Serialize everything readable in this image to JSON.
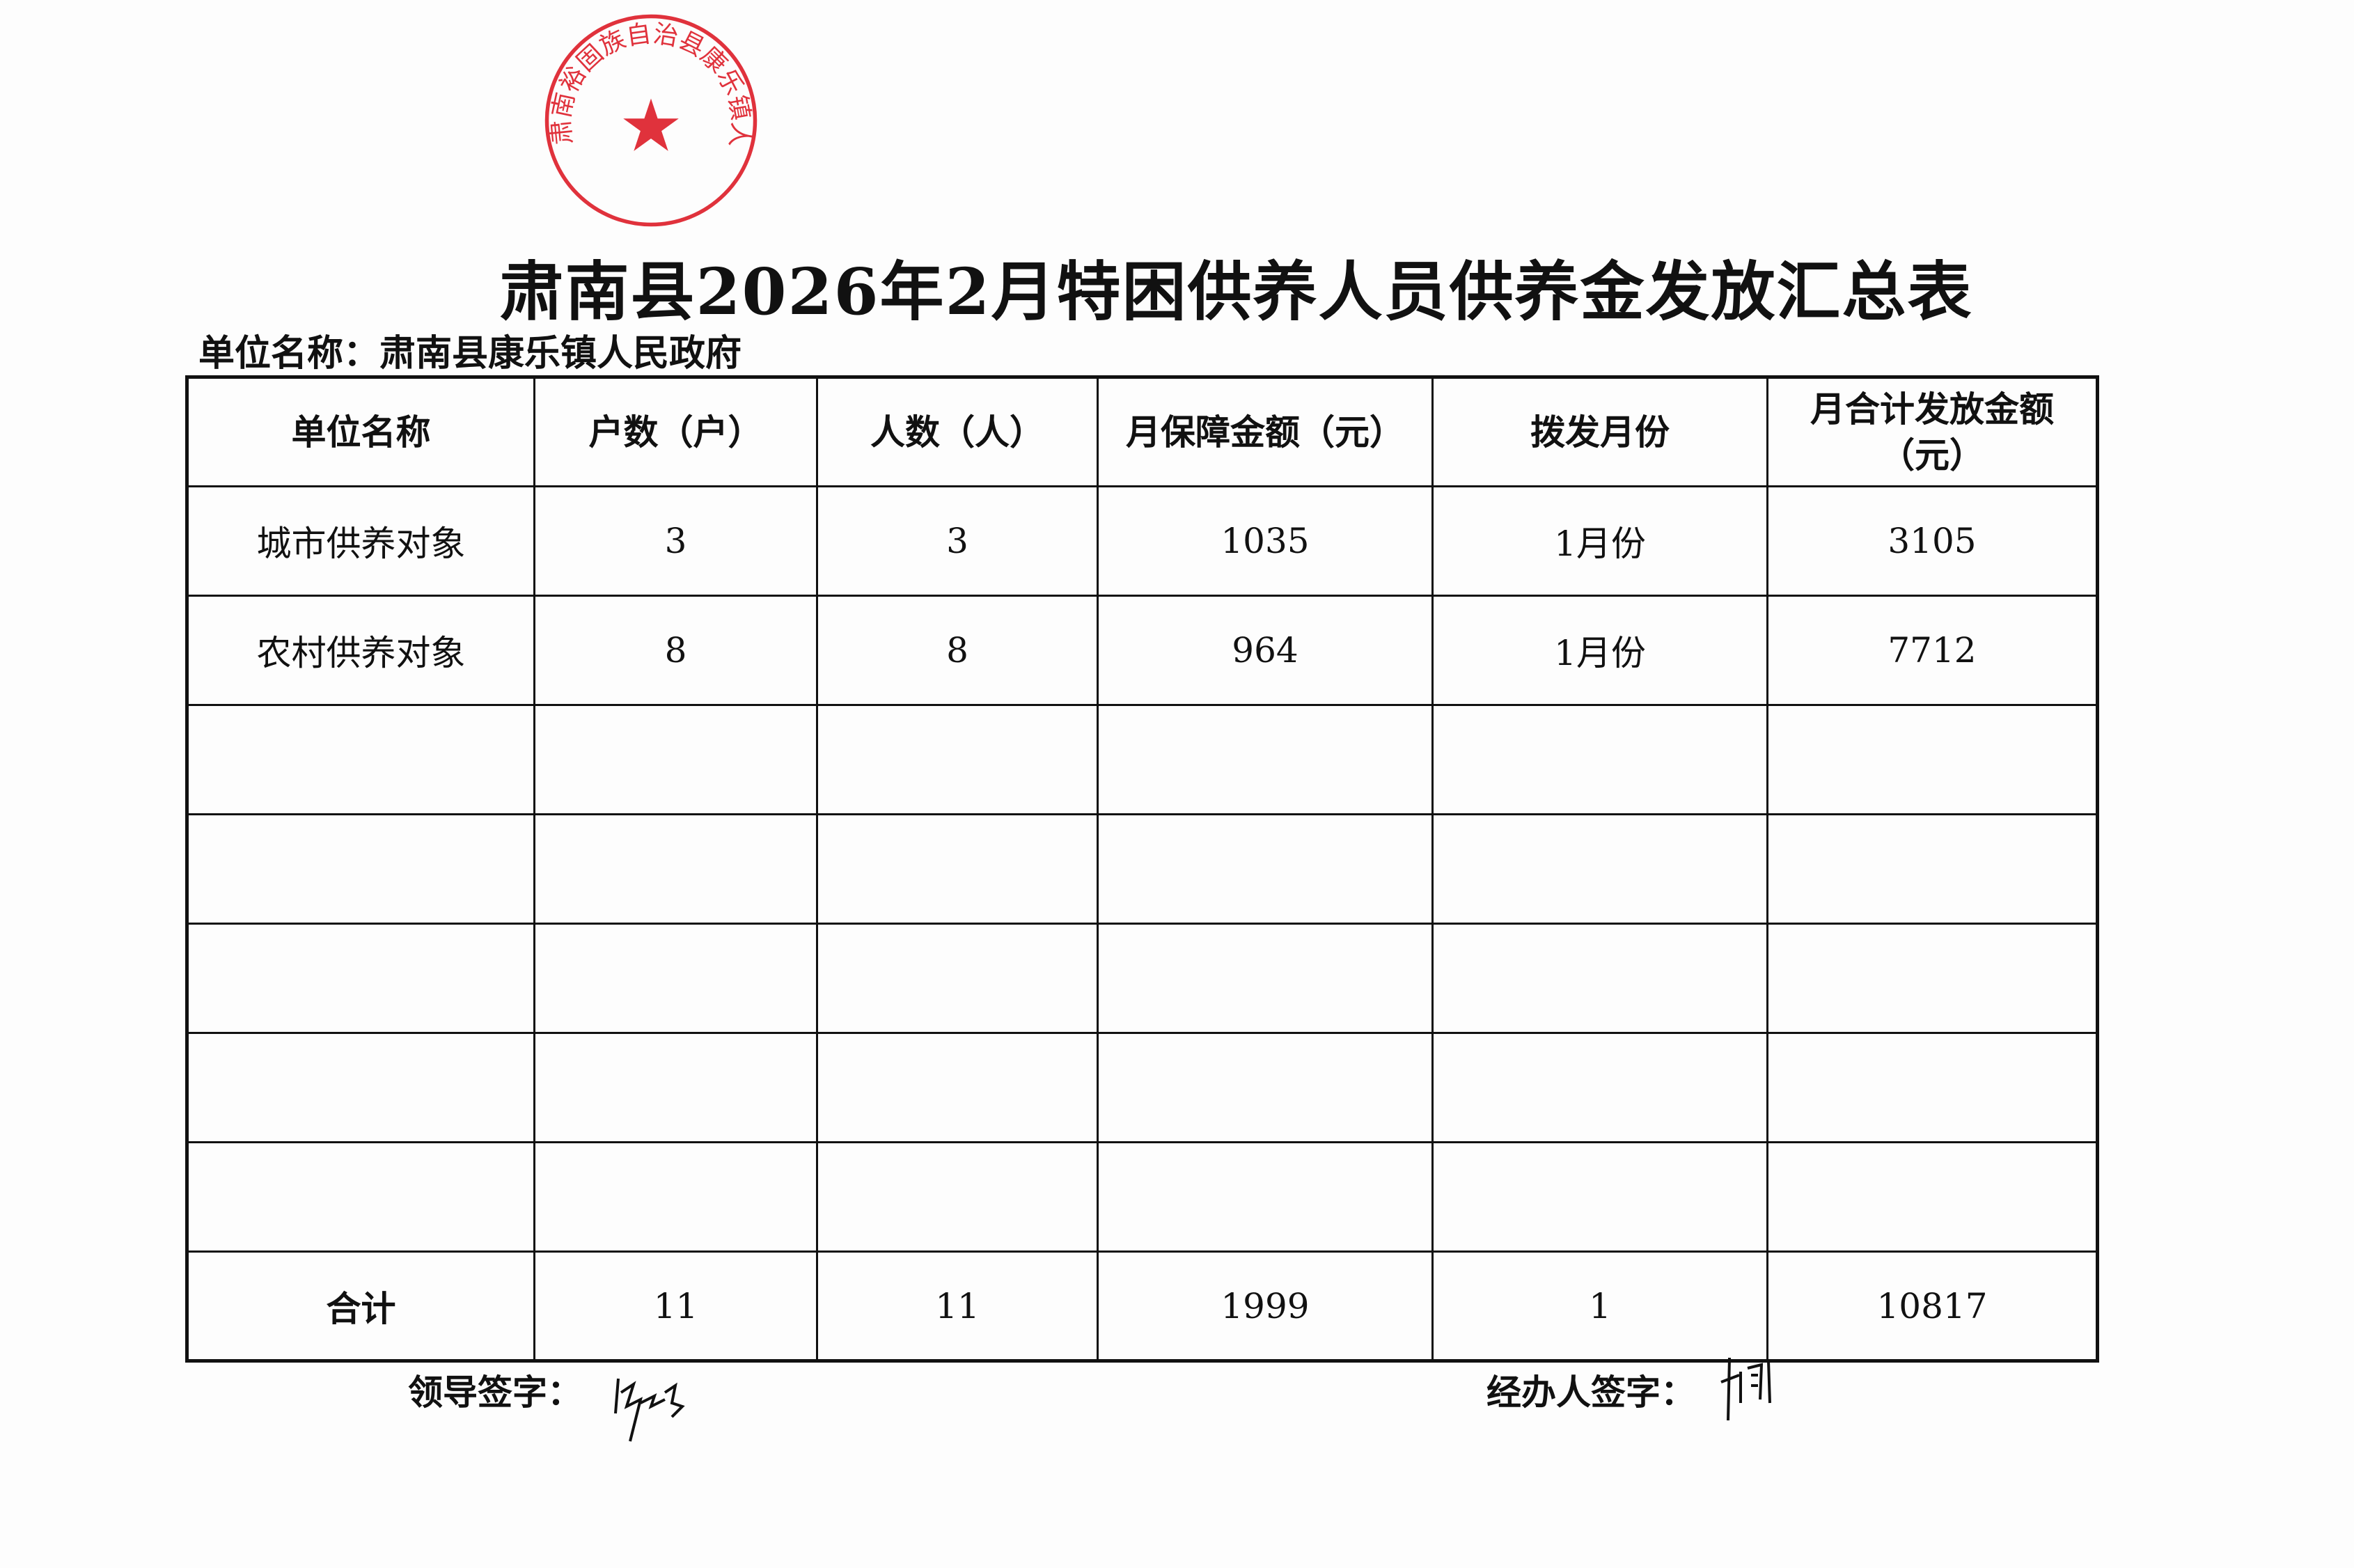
{
  "title": "肃南县2026年2月特困供养人员供养金发放汇总表",
  "unit_line": "单位名称：肃南县康乐镇人民政府",
  "table": {
    "headers": [
      "单位名称",
      "户数（户）",
      "人数（人）",
      "月保障金额（元）",
      "拨发月份",
      "月合计发放金额（元）"
    ],
    "rows": [
      [
        "城市供养对象",
        "3",
        "3",
        "1035",
        "1月份",
        "3105"
      ],
      [
        "农村供养对象",
        "8",
        "8",
        "964",
        "1月份",
        "7712"
      ],
      [
        "",
        "",
        "",
        "",
        "",
        ""
      ],
      [
        "",
        "",
        "",
        "",
        "",
        ""
      ],
      [
        "",
        "",
        "",
        "",
        "",
        ""
      ],
      [
        "",
        "",
        "",
        "",
        "",
        ""
      ],
      [
        "",
        "",
        "",
        "",
        "",
        ""
      ]
    ],
    "total": [
      "合计",
      "11",
      "11",
      "1999",
      "1",
      "10817"
    ]
  },
  "signatures": {
    "leader_label": "领导签字：",
    "handler_label": "经办人签字："
  },
  "stamp": {
    "text": "肃南裕固族自治县康乐镇人民政府",
    "color": "#e0323c"
  }
}
